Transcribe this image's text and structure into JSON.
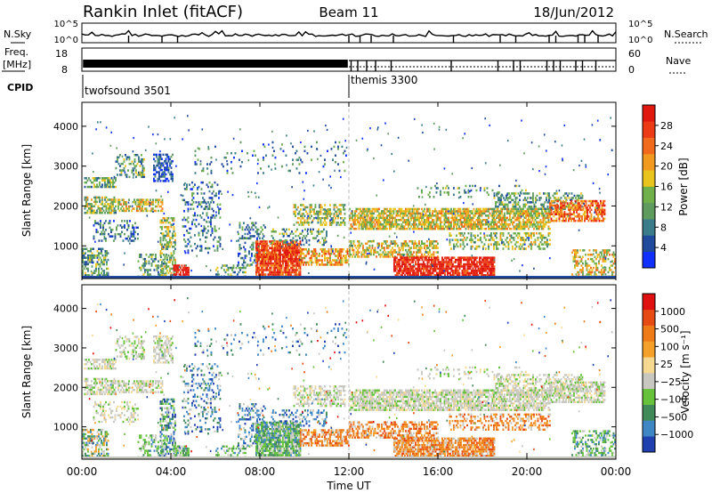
{
  "header": {
    "title": "Rankin Inlet (fitACF)",
    "beam": "Beam 11",
    "date": "18/Jun/2012"
  },
  "status_panels": {
    "nsky_label": "N.Sky",
    "nsearch_label": "N.Search",
    "freq_label_1": "Freq.",
    "freq_label_2": "[MHz]",
    "nave_label": "Nave",
    "cpid_label": "CPID",
    "nsky_ticks": [
      "10^5",
      "10^0"
    ],
    "nsearch_ticks": [
      "10^5",
      "10^0"
    ],
    "freq_ticks": [
      "18",
      "8"
    ],
    "nave_ticks": [
      "60",
      "0"
    ],
    "cpid_modes": [
      {
        "name": "twofsound 3501",
        "start_hour": 0
      },
      {
        "name": "themis 3300",
        "start_hour": 12
      }
    ]
  },
  "colors": {
    "power_scale": [
      "#1030ff",
      "#204a9c",
      "#3a7c8a",
      "#5f9a5e",
      "#6fb04a",
      "#e8c41c",
      "#f29a20",
      "#f26a1c",
      "#ec3a16",
      "#e01810"
    ],
    "velocity_scale": [
      "#2040b0",
      "#3e86c4",
      "#3f8a58",
      "#66c23a",
      "#c8c8c0",
      "#f6d890",
      "#f4a02a",
      "#ee7a18",
      "#e84a14",
      "#e01010"
    ],
    "ground_scatter": "#b8b8b0"
  },
  "chart_data": [
    {
      "type": "heatmap",
      "name": "power",
      "xlabel": "",
      "ylabel": "Slant Range [km]",
      "xlim": [
        0,
        24
      ],
      "ylim": [
        180,
        4600
      ],
      "y_ticks": [
        1000,
        2000,
        3000,
        4000
      ],
      "colorbar_label": "Power [dB]",
      "colorbar_ticks": [
        4,
        8,
        12,
        16,
        20,
        24,
        28
      ],
      "colorbar_range": [
        0,
        30
      ]
    },
    {
      "type": "heatmap",
      "name": "velocity",
      "xlabel": "Time UT",
      "ylabel": "Slant Range [km]",
      "xlim": [
        0,
        24
      ],
      "ylim": [
        180,
        4600
      ],
      "x_ticks": [
        "00:00",
        "04:00",
        "08:00",
        "12:00",
        "16:00",
        "20:00",
        "00:00"
      ],
      "y_ticks": [
        1000,
        2000,
        3000,
        4000
      ],
      "colorbar_label": "Velocity [m s⁻¹]",
      "colorbar_ticks": [
        "1000",
        "500",
        "100",
        "25",
        "−25",
        "−100",
        "−500",
        "−1000"
      ]
    }
  ]
}
